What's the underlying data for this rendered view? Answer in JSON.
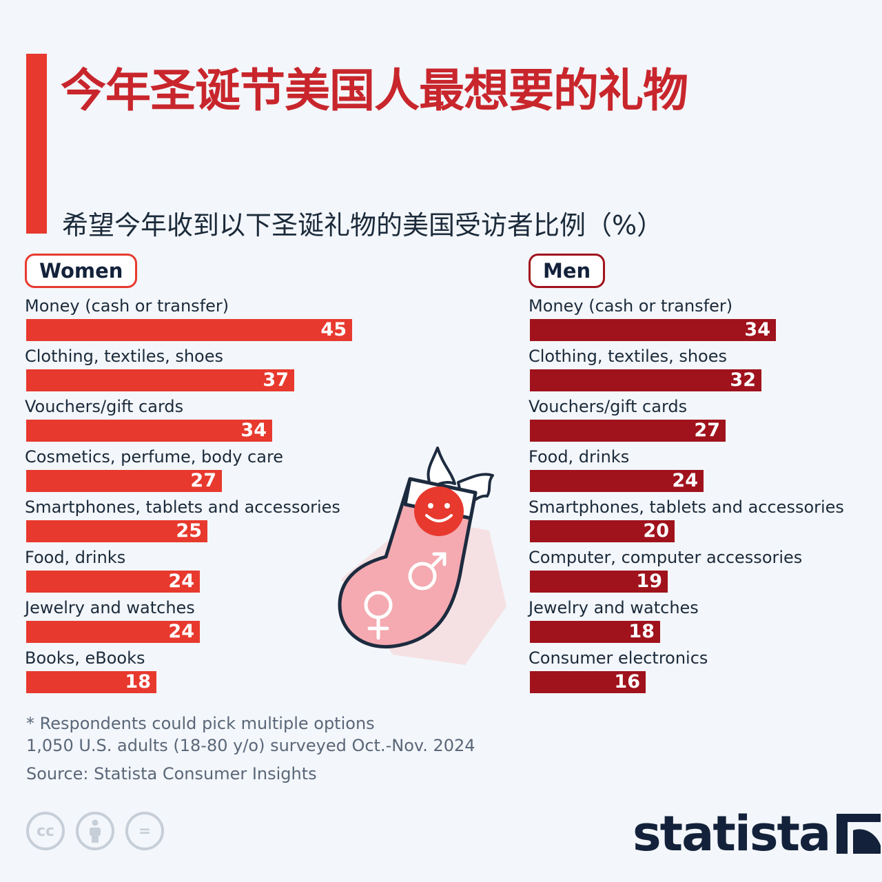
{
  "title": "今年圣诞节美国人最想要的礼物",
  "subtitle": "希望今年收到以下圣诞礼物的美国受访者比例（%）",
  "colors": {
    "accent": "#e8392e",
    "women_bar": "#e8392e",
    "men_bar": "#a0121c",
    "title": "#c8262c"
  },
  "chart_data": [
    {
      "type": "bar",
      "orientation": "horizontal",
      "panel_label": "Women",
      "categories": [
        "Money (cash or transfer)",
        "Clothing, textiles, shoes",
        "Vouchers/gift cards",
        "Cosmetics, perfume, body care",
        "Smartphones, tablets and accessories",
        "Food, drinks",
        "Jewelry and watches",
        "Books, eBooks"
      ],
      "values": [
        45,
        37,
        34,
        27,
        25,
        24,
        24,
        18
      ]
    },
    {
      "type": "bar",
      "orientation": "horizontal",
      "panel_label": "Men",
      "categories": [
        "Money (cash or transfer)",
        "Clothing, textiles, shoes",
        "Vouchers/gift cards",
        "Food, drinks",
        "Smartphones, tablets and accessories",
        "Computer, computer accessories",
        "Jewelry and watches",
        "Consumer electronics"
      ],
      "values": [
        34,
        32,
        27,
        24,
        20,
        19,
        18,
        16
      ]
    }
  ],
  "notes": {
    "footnote": "* Respondents could pick multiple options",
    "sample": "1,050 U.S. adults (18-80 y/o) surveyed Oct.-Nov. 2024",
    "source": "Source: Statista Consumer Insights"
  },
  "icons": [
    "christmas-stocking-icon",
    "holly-icon",
    "smiley-icon",
    "male-symbol-icon",
    "female-symbol-icon",
    "cc-icon",
    "attribution-icon",
    "no-derivatives-icon",
    "statista-logo-icon"
  ],
  "cc_labels": {
    "cc": "cc",
    "nd": "="
  },
  "logo": {
    "wordmark": "statista"
  }
}
